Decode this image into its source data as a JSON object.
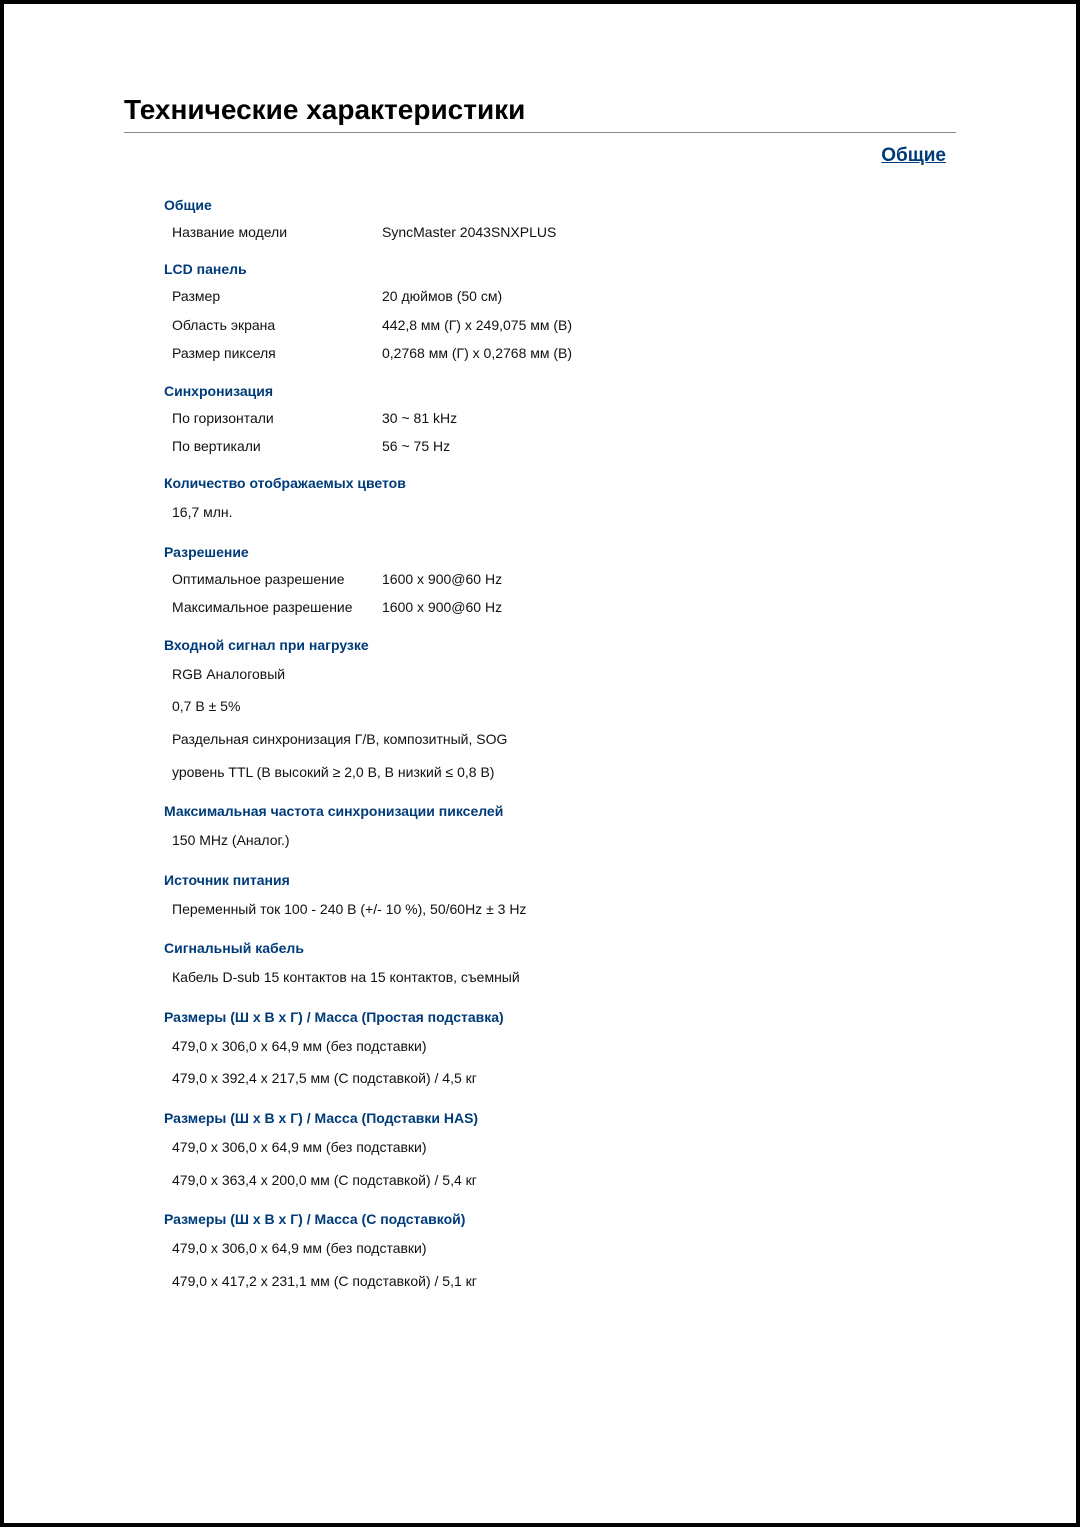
{
  "page_title": "Технические характеристики",
  "corner_title": "Общие",
  "colors": {
    "section_header": "#003b79",
    "text": "#111111",
    "border": "#000000",
    "rule": "#888888"
  },
  "sections": {
    "general": {
      "header": "Общие",
      "model_label": "Название модели",
      "model_value": "SyncMaster 2043SNXPLUS"
    },
    "lcd": {
      "header": "LCD панель",
      "size_label": "Размер",
      "size_value": "20 дюймов (50 см)",
      "area_label": "Область экрана",
      "area_value": "442,8 мм (Г) x 249,075 мм (В)",
      "pixel_label": "Размер пикселя",
      "pixel_value": "0,2768 мм (Г) x 0,2768 мм (В)"
    },
    "sync": {
      "header": "Синхронизация",
      "horiz_label": "По горизонтали",
      "horiz_value": "30 ~ 81 kHz",
      "vert_label": "По вертикали",
      "vert_value": "56 ~ 75 Hz"
    },
    "colors_count": {
      "header": "Количество отображаемых цветов",
      "value": "16,7 млн."
    },
    "resolution": {
      "header": "Разрешение",
      "optimal_label": "Оптимальное разрешение",
      "optimal_value": "1600 x 900@60 Hz",
      "max_label": "Максимальное разрешение",
      "max_value": "1600 x 900@60 Hz"
    },
    "input_signal": {
      "header": "Входной сигнал при нагрузке",
      "line1": "RGB Аналоговый",
      "line2": "0,7 B ± 5%",
      "line3": "Раздельная синхронизация Г/В, композитный, SOG",
      "line4": "уровень TTL (В высокий ≥ 2,0 В, В низкий ≤ 0,8 В)"
    },
    "max_pixel_clock": {
      "header": "Максимальная частота синхронизации пикселей",
      "value": "150 MHz (Аналог.)"
    },
    "power": {
      "header": "Источник питания",
      "value": "Переменный ток 100 - 240 В (+/- 10 %), 50/60Hz ± 3 Hz"
    },
    "cable": {
      "header": "Сигнальный кабель",
      "value": "Кабель D-sub 15 контактов на 15 контактов, съемный"
    },
    "dim_simple": {
      "header": "Размеры (Ш x В x Г) / Масса (Простая подставка)",
      "line1": "479,0 x 306,0 x 64,9 мм (без подставки)",
      "line2": "479,0 x 392,4 x 217,5 мм (С подставкой) / 4,5 кг"
    },
    "dim_has": {
      "header": "Размеры (Ш x В x Г) / Масса (Подставки HAS)",
      "line1": "479,0 x 306,0 x 64,9 мм (без подставки)",
      "line2": "479,0 x 363,4 x 200,0 мм (С подставкой) / 5,4 кг"
    },
    "dim_stand": {
      "header": "Размеры (Ш x В x Г) / Масса (С подставкой)",
      "line1": "479,0 x 306,0 x 64,9 мм (без подставки)",
      "line2": "479,0 x 417,2 x 231,1 мм (С подставкой) / 5,1 кг"
    }
  }
}
